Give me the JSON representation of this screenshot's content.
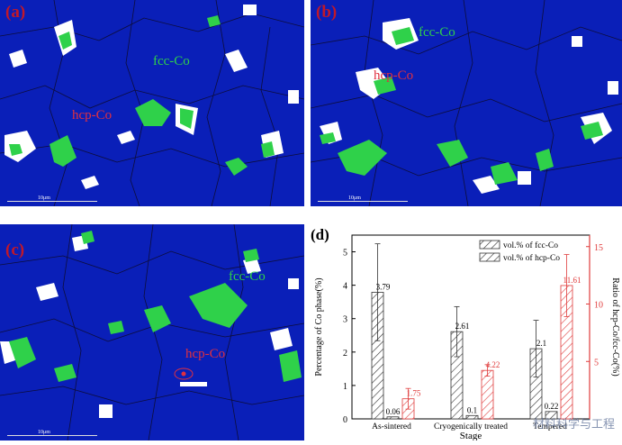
{
  "panels": {
    "a": {
      "label": "(a)",
      "fcc_label": "fcc-Co",
      "hcp_label": "hcp-Co",
      "scale": "10μm"
    },
    "b": {
      "label": "(b)",
      "fcc_label": "fcc-Co",
      "hcp_label": "hcp-Co",
      "scale": "10μm"
    },
    "c": {
      "label": "(c)",
      "fcc_label": "fcc-Co",
      "hcp_label": "hcp-Co",
      "scale": "10μm"
    },
    "d": {
      "label": "(d)"
    }
  },
  "colors": {
    "matrix": "#0a1fb8",
    "fcc": "#2fd14a",
    "hcp": "#e03040",
    "grain_boundary": "#0d0d3a",
    "fcc_bar": "#333333",
    "hcp_bar": "#e03b3b"
  },
  "watermark": "材料科学与工程",
  "chart_data": {
    "type": "bar",
    "categories": [
      "As-sintered",
      "Cryogenically treated",
      "Tempered"
    ],
    "xlabel": "Stage",
    "ylabel": "Percentage of Co phase(%)",
    "y2label": "Ratio of hcp-Co/fcc-Co(%)",
    "ylim": [
      0,
      5.5
    ],
    "y2lim": [
      0,
      16
    ],
    "yticks": [
      0,
      1,
      2,
      3,
      4,
      5
    ],
    "y2ticks": [
      5,
      10,
      15
    ],
    "legend_position": "top-right",
    "series": [
      {
        "name": "vol.% of fcc-Co",
        "axis": "left",
        "pattern": "hatch",
        "color": "#333333",
        "values": [
          3.79,
          2.61,
          2.1
        ],
        "errors": [
          1.45,
          0.75,
          0.85
        ],
        "labels": [
          "3.79",
          "2.61",
          "2.1"
        ]
      },
      {
        "name": "vol.% of hcp-Co",
        "axis": "left",
        "pattern": "hatch",
        "color": "#333333",
        "values": [
          0.06,
          0.1,
          0.22
        ],
        "errors": [
          0,
          0,
          0
        ],
        "labels": [
          "0.06",
          "0.1",
          "0.22"
        ]
      },
      {
        "name": "Ratio of hcp-Co/fcc-Co",
        "axis": "right",
        "pattern": "hatch",
        "color": "#e03b3b",
        "values": [
          1.75,
          4.22,
          11.61
        ],
        "errors": [
          0.9,
          0.5,
          2.7
        ],
        "labels": [
          "1.75",
          "4.22",
          "11.61"
        ]
      }
    ]
  }
}
